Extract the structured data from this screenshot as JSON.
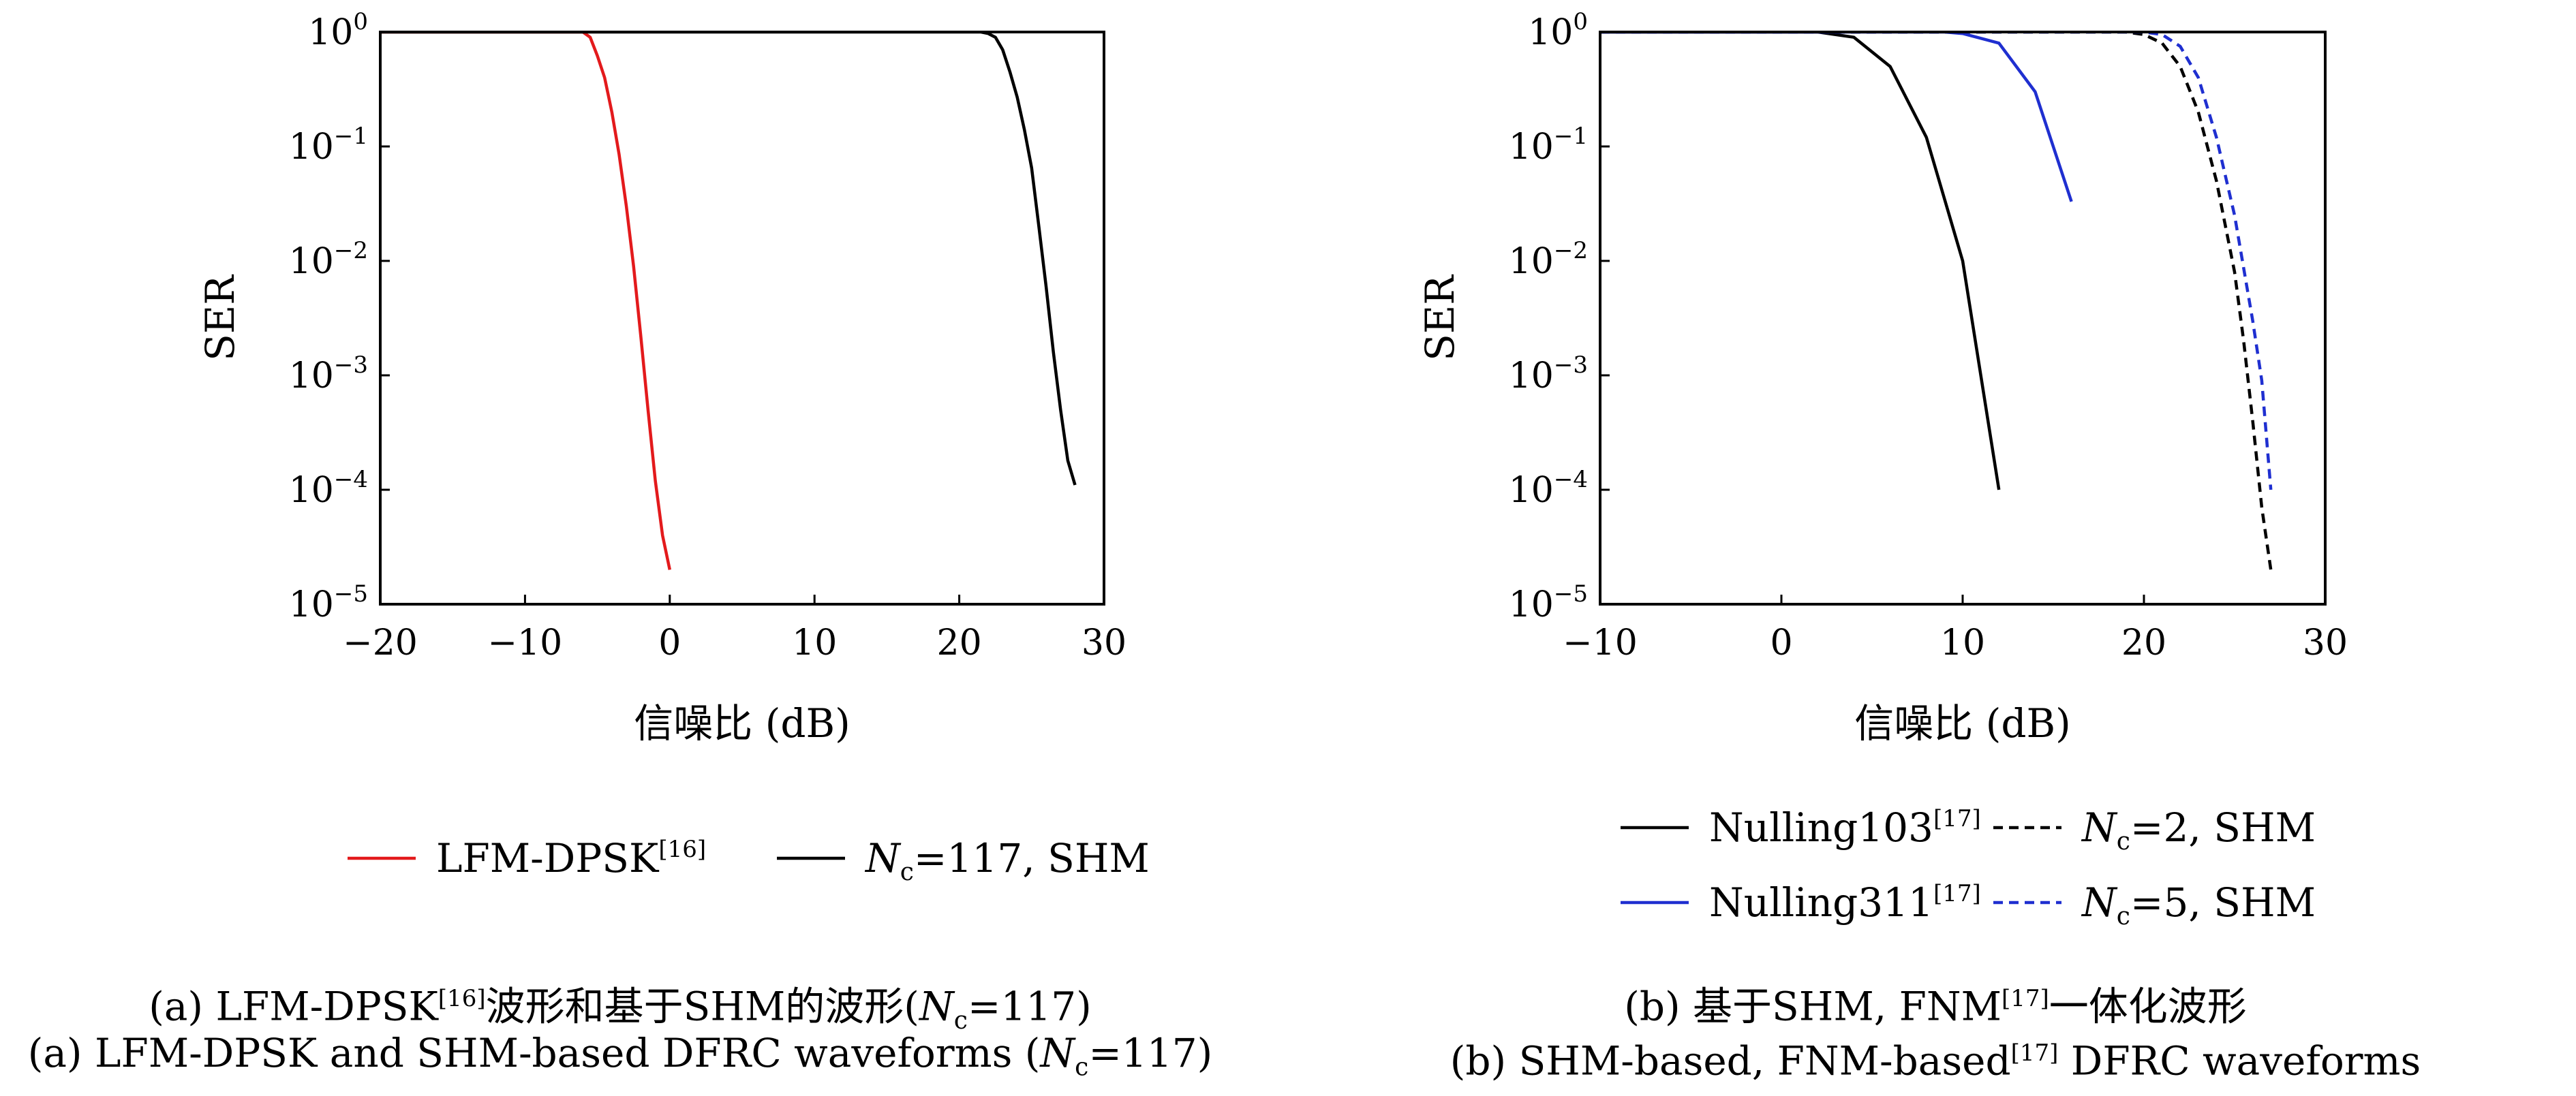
{
  "chart_data": [
    {
      "type": "line",
      "ylabel": "SER",
      "xlabel": "信噪比 (dB)",
      "yscale": "log",
      "xlim": [
        -20,
        30
      ],
      "ylim": [
        1e-05,
        1
      ],
      "xticks": [
        -20,
        -10,
        0,
        10,
        20,
        30
      ],
      "xtick_labels": [
        "−20",
        "−10",
        "0",
        "10",
        "20",
        "30"
      ],
      "yticks": [
        0,
        -1,
        -2,
        -3,
        -4,
        -5
      ],
      "ytick_labels": [
        "10",
        "10",
        "10",
        "10",
        "10",
        "10"
      ],
      "ytick_exps": [
        "0",
        "−1",
        "−2",
        "−3",
        "−4",
        "−5"
      ],
      "legend_position": "bottom",
      "series": [
        {
          "name": "LFM-DPSK",
          "name_ref": "[16]",
          "color": "#e31a1c",
          "dash": "solid",
          "x": [
            -20,
            -6,
            -5.5,
            -5,
            -4.5,
            -4,
            -3.5,
            -3,
            -2.5,
            -2,
            -1.5,
            -1,
            -0.5,
            0
          ],
          "y": [
            1,
            1,
            0.9,
            0.62,
            0.4,
            0.2,
            0.085,
            0.03,
            0.009,
            0.0022,
            0.0005,
            0.00012,
            4e-05,
            2e-05
          ]
        },
        {
          "name": "N",
          "name_sub": "c",
          "name_rest": "=117, SHM",
          "color": "#000000",
          "dash": "solid",
          "x": [
            -20,
            21.5,
            22,
            22.5,
            23,
            23.5,
            24,
            24.5,
            25,
            25.5,
            26,
            26.5,
            27,
            27.5,
            28
          ],
          "y": [
            1,
            1,
            0.97,
            0.9,
            0.7,
            0.45,
            0.27,
            0.14,
            0.065,
            0.02,
            0.006,
            0.0016,
            0.0005,
            0.00018,
            0.00011
          ]
        }
      ]
    },
    {
      "type": "line",
      "ylabel": "SER",
      "xlabel": "信噪比 (dB)",
      "yscale": "log",
      "xlim": [
        -10,
        30
      ],
      "ylim": [
        1e-05,
        1
      ],
      "xticks": [
        -10,
        0,
        10,
        20,
        30
      ],
      "xtick_labels": [
        "−10",
        "0",
        "10",
        "20",
        "30"
      ],
      "yticks": [
        0,
        -1,
        -2,
        -3,
        -4,
        -5
      ],
      "ytick_labels": [
        "10",
        "10",
        "10",
        "10",
        "10",
        "10"
      ],
      "ytick_exps": [
        "0",
        "−1",
        "−2",
        "−3",
        "−4",
        "−5"
      ],
      "legend_position": "bottom",
      "series": [
        {
          "name": "Nulling103",
          "name_ref": "[17]",
          "color": "#000000",
          "dash": "solid",
          "x": [
            -10,
            2,
            4,
            6,
            8,
            10,
            12
          ],
          "y": [
            1,
            1,
            0.9,
            0.5,
            0.12,
            0.01,
            0.0001
          ]
        },
        {
          "name": "N",
          "name_sub": "c",
          "name_rest": "=2, SHM",
          "color": "#000000",
          "dash": "dashed",
          "x": [
            -10,
            19,
            20,
            21,
            22,
            23,
            24,
            25,
            25.5,
            26,
            26.5,
            27
          ],
          "y": [
            1,
            1,
            0.95,
            0.8,
            0.5,
            0.2,
            0.05,
            0.008,
            0.002,
            0.0004,
            7e-05,
            2e-05
          ]
        },
        {
          "name": "Nulling311",
          "name_ref": "[17]",
          "color": "#1f2fd0",
          "dash": "solid",
          "x": [
            -10,
            9,
            10,
            12,
            14,
            16
          ],
          "y": [
            1,
            1,
            0.97,
            0.8,
            0.3,
            0.033
          ]
        },
        {
          "name": "N",
          "name_sub": "c",
          "name_rest": "=5, SHM",
          "color": "#1f2fd0",
          "dash": "dashed",
          "x": [
            -10,
            20,
            21,
            22,
            23,
            24,
            25,
            26,
            26.5,
            27
          ],
          "y": [
            1,
            1,
            0.95,
            0.75,
            0.4,
            0.12,
            0.025,
            0.003,
            0.0009,
            0.0001
          ]
        }
      ]
    }
  ],
  "captions": {
    "a_zh_1": "(a) LFM-DPSK",
    "a_zh_ref": "[16]",
    "a_zh_2": "波形和基于SHM的波形(",
    "a_zh_N": "N",
    "a_zh_sub": "c",
    "a_zh_3": "=117)",
    "a_en_1": "(a) LFM-DPSK and SHM-based DFRC waveforms (",
    "a_en_N": "N",
    "a_en_sub": "c",
    "a_en_2": "=117)",
    "b_zh_1": "(b) 基于SHM, FNM",
    "b_zh_ref": "[17]",
    "b_zh_2": "一体化波形",
    "b_en_1": "(b) SHM-based, FNM-based",
    "b_en_ref": "[17]",
    "b_en_2": " DFRC waveforms"
  }
}
